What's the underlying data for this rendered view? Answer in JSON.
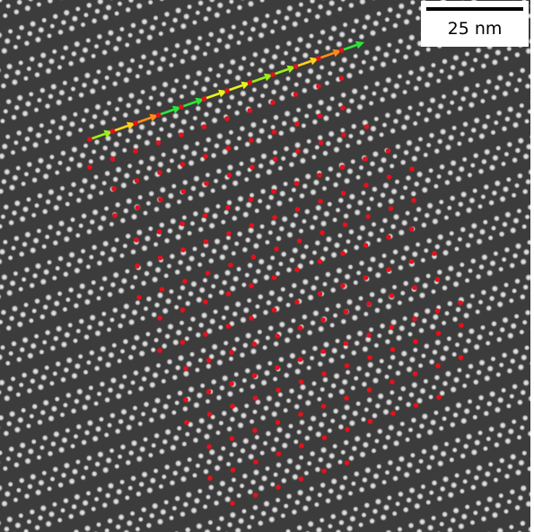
{
  "image": {
    "description_type": "STEM lattice micrograph with displacement vector overlay",
    "background_color": "#3c3c3c",
    "atom_color": "#e6e6e6"
  },
  "overlay": {
    "site_marker_color": "#e8101a",
    "arrow_palette": [
      "#ff1a10",
      "#ff8c1a",
      "#ffd21a",
      "#e8f51a",
      "#9cf01a",
      "#2ee63a",
      "#ff1aa8",
      "#9a1ae8",
      "#1a2ae8"
    ]
  },
  "scale_bar": {
    "label": "25 nm"
  }
}
